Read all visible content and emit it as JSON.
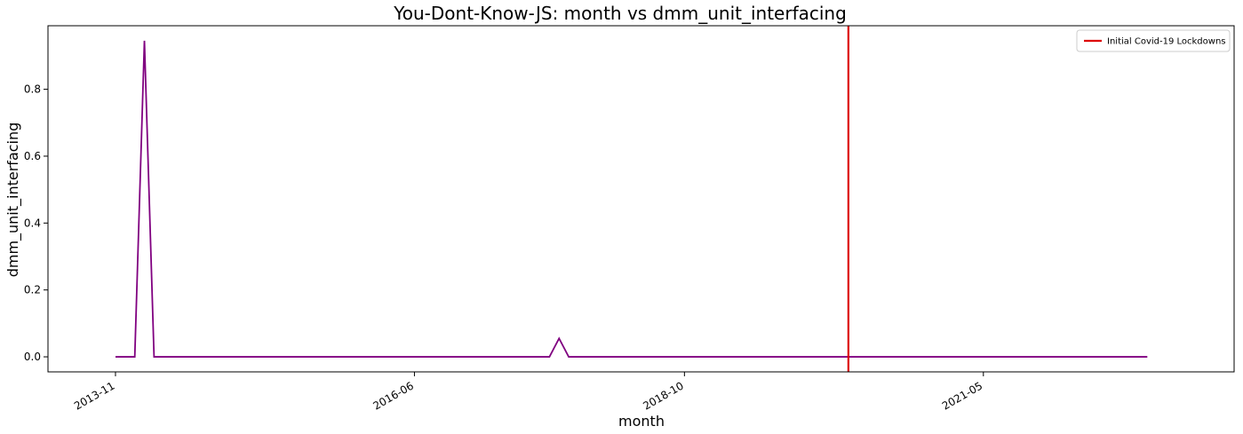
{
  "chart_data": {
    "type": "line",
    "title": "You-Dont-Know-JS: month vs dmm_unit_interfacing",
    "xlabel": "month",
    "ylabel": "dmm_unit_interfacing",
    "x_tick_labels": [
      "2013-11",
      "2016-06",
      "2018-10",
      "2021-05"
    ],
    "y_ticks": [
      0.0,
      0.2,
      0.4,
      0.6,
      0.8
    ],
    "y_tick_labels": [
      "0.0",
      "0.2",
      "0.4",
      "0.6",
      "0.8"
    ],
    "ylim": [
      -0.045,
      0.99
    ],
    "xlim": [
      "2013-04",
      "2023-07"
    ],
    "grid": false,
    "legend_position": "top-right",
    "series": [
      {
        "name": "",
        "color": "#800080",
        "x": [
          "2013-11",
          "2013-12",
          "2014-01",
          "2014-02",
          "2014-03",
          "2017-08",
          "2017-09",
          "2017-10",
          "2022-10"
        ],
        "values": [
          0.0,
          0.0,
          0.0,
          0.945,
          0.0,
          0.0,
          0.055,
          0.0,
          0.0
        ]
      }
    ],
    "vlines": [
      {
        "x": "2020-03",
        "label": "Initial Covid-19 Lockdowns",
        "color": "#dd0000"
      }
    ]
  }
}
